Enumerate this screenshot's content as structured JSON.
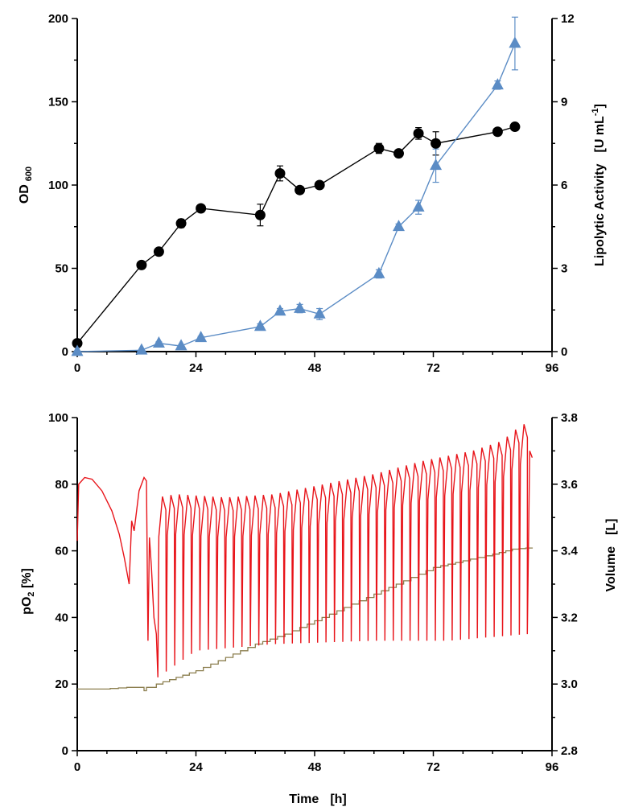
{
  "chart_data": [
    {
      "type": "scatter",
      "xticks": [
        "0",
        "24",
        "48",
        "72",
        "96"
      ],
      "xlim": [
        0,
        96
      ],
      "ylim": [
        0,
        200
      ],
      "y2lim": [
        0,
        12
      ],
      "yticks": [
        "0",
        "50",
        "100",
        "150",
        "200"
      ],
      "y2ticks": [
        "0",
        "3",
        "6",
        "9",
        "12"
      ],
      "ylabel": "OD",
      "ylabel_sub": "600",
      "y2label": "Lipolytic Activity",
      "y2unit_main": "[U mL",
      "y2unit_sup": "-1",
      "y2unit_end": "]",
      "series": [
        {
          "axis": "left",
          "marker": "circle",
          "color": "#000000",
          "points": [
            {
              "x": 0,
              "y": 5,
              "err": 0
            },
            {
              "x": 13,
              "y": 52,
              "err": 1
            },
            {
              "x": 16.5,
              "y": 60,
              "err": 1.5
            },
            {
              "x": 21,
              "y": 77,
              "err": 2.5
            },
            {
              "x": 25,
              "y": 86,
              "err": 1
            },
            {
              "x": 37,
              "y": 82,
              "err": 6.5
            },
            {
              "x": 41,
              "y": 107,
              "err": 4.5
            },
            {
              "x": 45,
              "y": 97,
              "err": 1
            },
            {
              "x": 49,
              "y": 100,
              "err": 1.5
            },
            {
              "x": 61,
              "y": 122,
              "err": 3
            },
            {
              "x": 65,
              "y": 119,
              "err": 1
            },
            {
              "x": 69,
              "y": 131,
              "err": 3.5
            },
            {
              "x": 72.5,
              "y": 125,
              "err": 7
            },
            {
              "x": 85,
              "y": 132,
              "err": 2
            },
            {
              "x": 88.5,
              "y": 135,
              "err": 1
            }
          ]
        },
        {
          "axis": "right",
          "marker": "triangle",
          "color": "#5B8CC5",
          "points": [
            {
              "x": 0,
              "y": 0,
              "err": 0
            },
            {
              "x": 13,
              "y": 0.05,
              "err": 0
            },
            {
              "x": 16.5,
              "y": 0.3,
              "err": 0.05
            },
            {
              "x": 21,
              "y": 0.2,
              "err": 0
            },
            {
              "x": 25,
              "y": 0.5,
              "err": 0.05
            },
            {
              "x": 37,
              "y": 0.9,
              "err": 0.1
            },
            {
              "x": 41,
              "y": 1.45,
              "err": 0.1
            },
            {
              "x": 45,
              "y": 1.55,
              "err": 0.15
            },
            {
              "x": 49,
              "y": 1.35,
              "err": 0.2
            },
            {
              "x": 61,
              "y": 2.8,
              "err": 0.15
            },
            {
              "x": 65,
              "y": 4.5,
              "err": 0.1
            },
            {
              "x": 69,
              "y": 5.2,
              "err": 0.25
            },
            {
              "x": 72.5,
              "y": 6.7,
              "err": 0.6
            },
            {
              "x": 85,
              "y": 9.6,
              "err": 0.15
            },
            {
              "x": 88.5,
              "y": 11.1,
              "err": 0.95
            }
          ]
        }
      ]
    },
    {
      "type": "line",
      "xticks": [
        "0",
        "24",
        "48",
        "72",
        "96"
      ],
      "xlim": [
        0,
        96
      ],
      "ylim": [
        0,
        100
      ],
      "y2lim": [
        2.8,
        3.8
      ],
      "yticks": [
        "0",
        "20",
        "40",
        "60",
        "80",
        "100"
      ],
      "y2ticks": [
        "2.8",
        "3.0",
        "3.2",
        "3.4",
        "3.6",
        "3.8"
      ],
      "xlabel": "Time",
      "xunit": "[h]",
      "ylabel_main": "pO",
      "ylabel_sub": "2",
      "ylabel_end": " [%]",
      "y2label": "Volume",
      "y2unit": "[L]",
      "po2": {
        "color": "#E8141A",
        "initial": [
          [
            0,
            63
          ],
          [
            0.3,
            80
          ],
          [
            1.5,
            82
          ],
          [
            3,
            81.5
          ],
          [
            5,
            78
          ],
          [
            7,
            72
          ],
          [
            8.5,
            65
          ],
          [
            9.5,
            58
          ],
          [
            10.5,
            50
          ],
          [
            11,
            69
          ],
          [
            11.5,
            66
          ],
          [
            12.5,
            78
          ],
          [
            13.5,
            82
          ],
          [
            14,
            81
          ],
          [
            14.3,
            33
          ],
          [
            14.6,
            64
          ],
          [
            15,
            55
          ],
          [
            15.5,
            40
          ],
          [
            16,
            35
          ]
        ],
        "pulses": {
          "start": 16.3,
          "period": 1.7,
          "end": 91,
          "troughs_at": [
            16.3,
            24,
            40,
            60,
            75,
            91
          ],
          "trough_values": [
            22,
            30,
            32,
            33,
            33,
            35
          ],
          "peaks_at": [
            16.3,
            20,
            30,
            40,
            50,
            60,
            70,
            80,
            86,
            90
          ],
          "peak_values": [
            76,
            77,
            76,
            77,
            80,
            83,
            87,
            90,
            93,
            98
          ]
        },
        "final": [
          [
            91,
            35
          ],
          [
            91.5,
            90
          ],
          [
            92,
            88
          ]
        ]
      },
      "volume": {
        "color": "#8B7E4E",
        "points": [
          [
            0,
            2.985
          ],
          [
            5,
            2.985
          ],
          [
            10,
            2.99
          ],
          [
            13,
            2.99
          ],
          [
            13.5,
            2.98
          ],
          [
            14,
            2.99
          ],
          [
            16,
            3.0
          ],
          [
            20,
            3.02
          ],
          [
            24,
            3.04
          ],
          [
            30,
            3.08
          ],
          [
            36,
            3.12
          ],
          [
            42,
            3.15
          ],
          [
            48,
            3.19
          ],
          [
            54,
            3.23
          ],
          [
            60,
            3.27
          ],
          [
            66,
            3.31
          ],
          [
            72,
            3.35
          ],
          [
            78,
            3.37
          ],
          [
            84,
            3.39
          ],
          [
            88,
            3.405
          ],
          [
            92,
            3.41
          ]
        ]
      }
    }
  ]
}
